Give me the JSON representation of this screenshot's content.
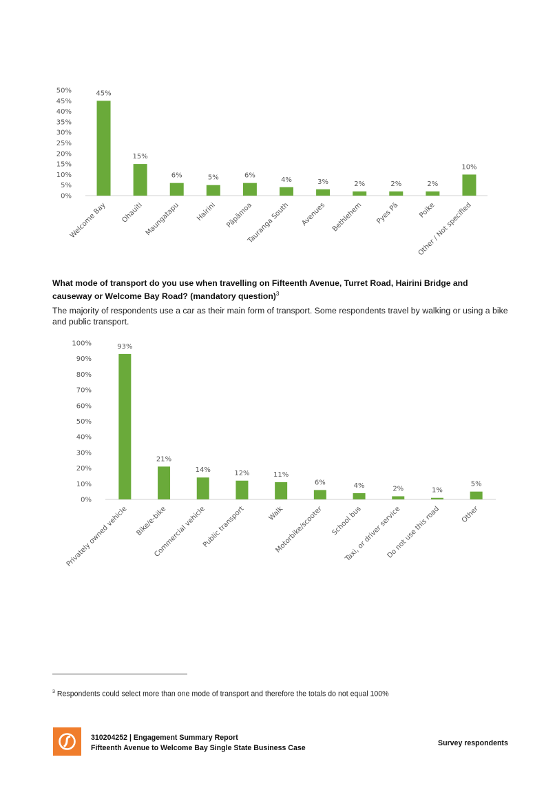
{
  "chart_data": [
    {
      "type": "bar",
      "categories": [
        "Welcome Bay",
        "Ohauiti",
        "Maungatapu",
        "Hairini",
        "Pāpāmoa",
        "Tauranga South",
        "Avenues",
        "Bethlehem",
        "Pyes Pā",
        "Poike",
        "Other / Not specified"
      ],
      "values": [
        45,
        15,
        6,
        5,
        6,
        4,
        3,
        2,
        2,
        2,
        10
      ],
      "data_labels": [
        "45%",
        "15%",
        "6%",
        "5%",
        "6%",
        "4%",
        "3%",
        "2%",
        "2%",
        "2%",
        "10%"
      ],
      "ylim": [
        0,
        50
      ],
      "yticks": [
        "0%",
        "5%",
        "10%",
        "15%",
        "20%",
        "25%",
        "30%",
        "35%",
        "40%",
        "45%",
        "50%"
      ],
      "bar_color": "#6aaa3a",
      "grid": false
    },
    {
      "type": "bar",
      "categories": [
        "Privately owned vehicle",
        "Bike/e-bike",
        "Commercial vehicle",
        "Public transport",
        "Walk",
        "Motorbike/scooter",
        "School bus",
        "Taxi, or driver service",
        "Do not use this road",
        "Other"
      ],
      "values": [
        93,
        21,
        14,
        12,
        11,
        6,
        4,
        2,
        1,
        5
      ],
      "data_labels": [
        "93%",
        "21%",
        "14%",
        "12%",
        "11%",
        "6%",
        "4%",
        "2%",
        "1%",
        "5%"
      ],
      "ylim": [
        0,
        100
      ],
      "yticks": [
        "0%",
        "10%",
        "20%",
        "30%",
        "40%",
        "50%",
        "60%",
        "70%",
        "80%",
        "90%",
        "100%"
      ],
      "bar_color": "#6aaa3a",
      "grid": false
    }
  ],
  "question": {
    "text": "What mode of transport do you use when travelling on Fifteenth Avenue, Turret Road, Hairini Bridge and causeway or Welcome Bay Road? (mandatory question)",
    "footnote_ref": "3"
  },
  "paragraph": "The majority of respondents use a car as their main form of transport. Some respondents travel by walking or using a bike and public transport.",
  "footnote": {
    "number": "3",
    "text": "Respondents could select more than one mode of transport and therefore the totals do not equal 100%"
  },
  "footer": {
    "line1": "310204252 | Engagement Summary Report",
    "line2": "Fifteenth Avenue to Welcome Bay Single State Business Case",
    "section": "Survey respondents",
    "logo_color": "#f07d2c",
    "logo_icon": "stantec-logo-icon"
  }
}
